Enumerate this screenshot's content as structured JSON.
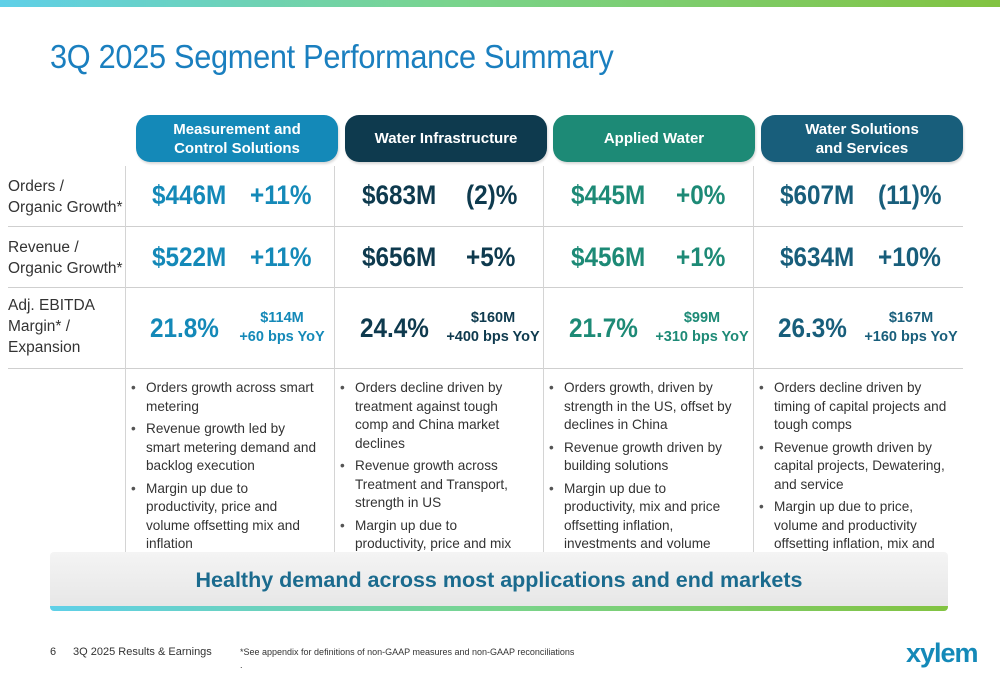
{
  "title": "3Q 2025 Segment Performance Summary",
  "colors": {
    "mcs": "#1489b8",
    "wi": "#0e3a4e",
    "aw": "#1d8a76",
    "wss": "#185e7b",
    "title": "#1a7fbf"
  },
  "segments": [
    {
      "name": "Measurement and\nControl Solutions",
      "orders_value": "$446M",
      "orders_growth": "+11%",
      "revenue_value": "$522M",
      "revenue_growth": "+11%",
      "margin": "21.8%",
      "ebitda": "$114M",
      "expansion": "+60 bps YoY",
      "bullets": [
        "Orders growth across smart metering",
        "Revenue growth led by smart metering demand and backlog execution",
        "Margin up due to productivity, price and volume offsetting mix and inflation"
      ]
    },
    {
      "name": "Water Infrastructure",
      "orders_value": "$683M",
      "orders_growth": "(2)%",
      "revenue_value": "$656M",
      "revenue_growth": "+5%",
      "margin": "24.4%",
      "ebitda": "$160M",
      "expansion": "+400 bps YoY",
      "bullets": [
        "Orders decline driven by treatment against tough comp and China market declines",
        "Revenue growth across Treatment and Transport, strength in US",
        "Margin up due to productivity, price and mix offsetting inflation, volume and investments"
      ]
    },
    {
      "name": "Applied Water",
      "orders_value": "$445M",
      "orders_growth": "+0%",
      "revenue_value": "$456M",
      "revenue_growth": "+1%",
      "margin": "21.7%",
      "ebitda": "$99M",
      "expansion": "+310 bps YoY",
      "bullets": [
        "Orders growth, driven by strength in the US, offset by declines in China",
        "Revenue growth driven by building solutions",
        "Margin up due to productivity, mix and price offsetting inflation, investments and volume"
      ]
    },
    {
      "name": "Water Solutions\nand Services",
      "orders_value": "$607M",
      "orders_growth": "(11)%",
      "revenue_value": "$634M",
      "revenue_growth": "+10%",
      "margin": "26.3%",
      "ebitda": "$167M",
      "expansion": "+160 bps YoY",
      "bullets": [
        "Orders decline driven by timing of capital projects and tough comps",
        "Revenue growth driven by capital projects, Dewatering, and service",
        "Margin up due to price, volume and productivity offsetting inflation, mix and investments"
      ]
    }
  ],
  "row_labels": {
    "orders": "Orders /\nOrganic Growth*",
    "revenue": "Revenue /\nOrganic Growth*",
    "ebitda": "Adj. EBITDA\nMargin* /\nExpansion"
  },
  "banner": "Healthy demand across most applications and end markets",
  "footer": {
    "page": "6",
    "deck": "3Q 2025 Results & Earnings",
    "note": "*See appendix for definitions of non-GAAP measures and non-GAAP reconciliations",
    "dot": ".",
    "logo": "xylem"
  }
}
